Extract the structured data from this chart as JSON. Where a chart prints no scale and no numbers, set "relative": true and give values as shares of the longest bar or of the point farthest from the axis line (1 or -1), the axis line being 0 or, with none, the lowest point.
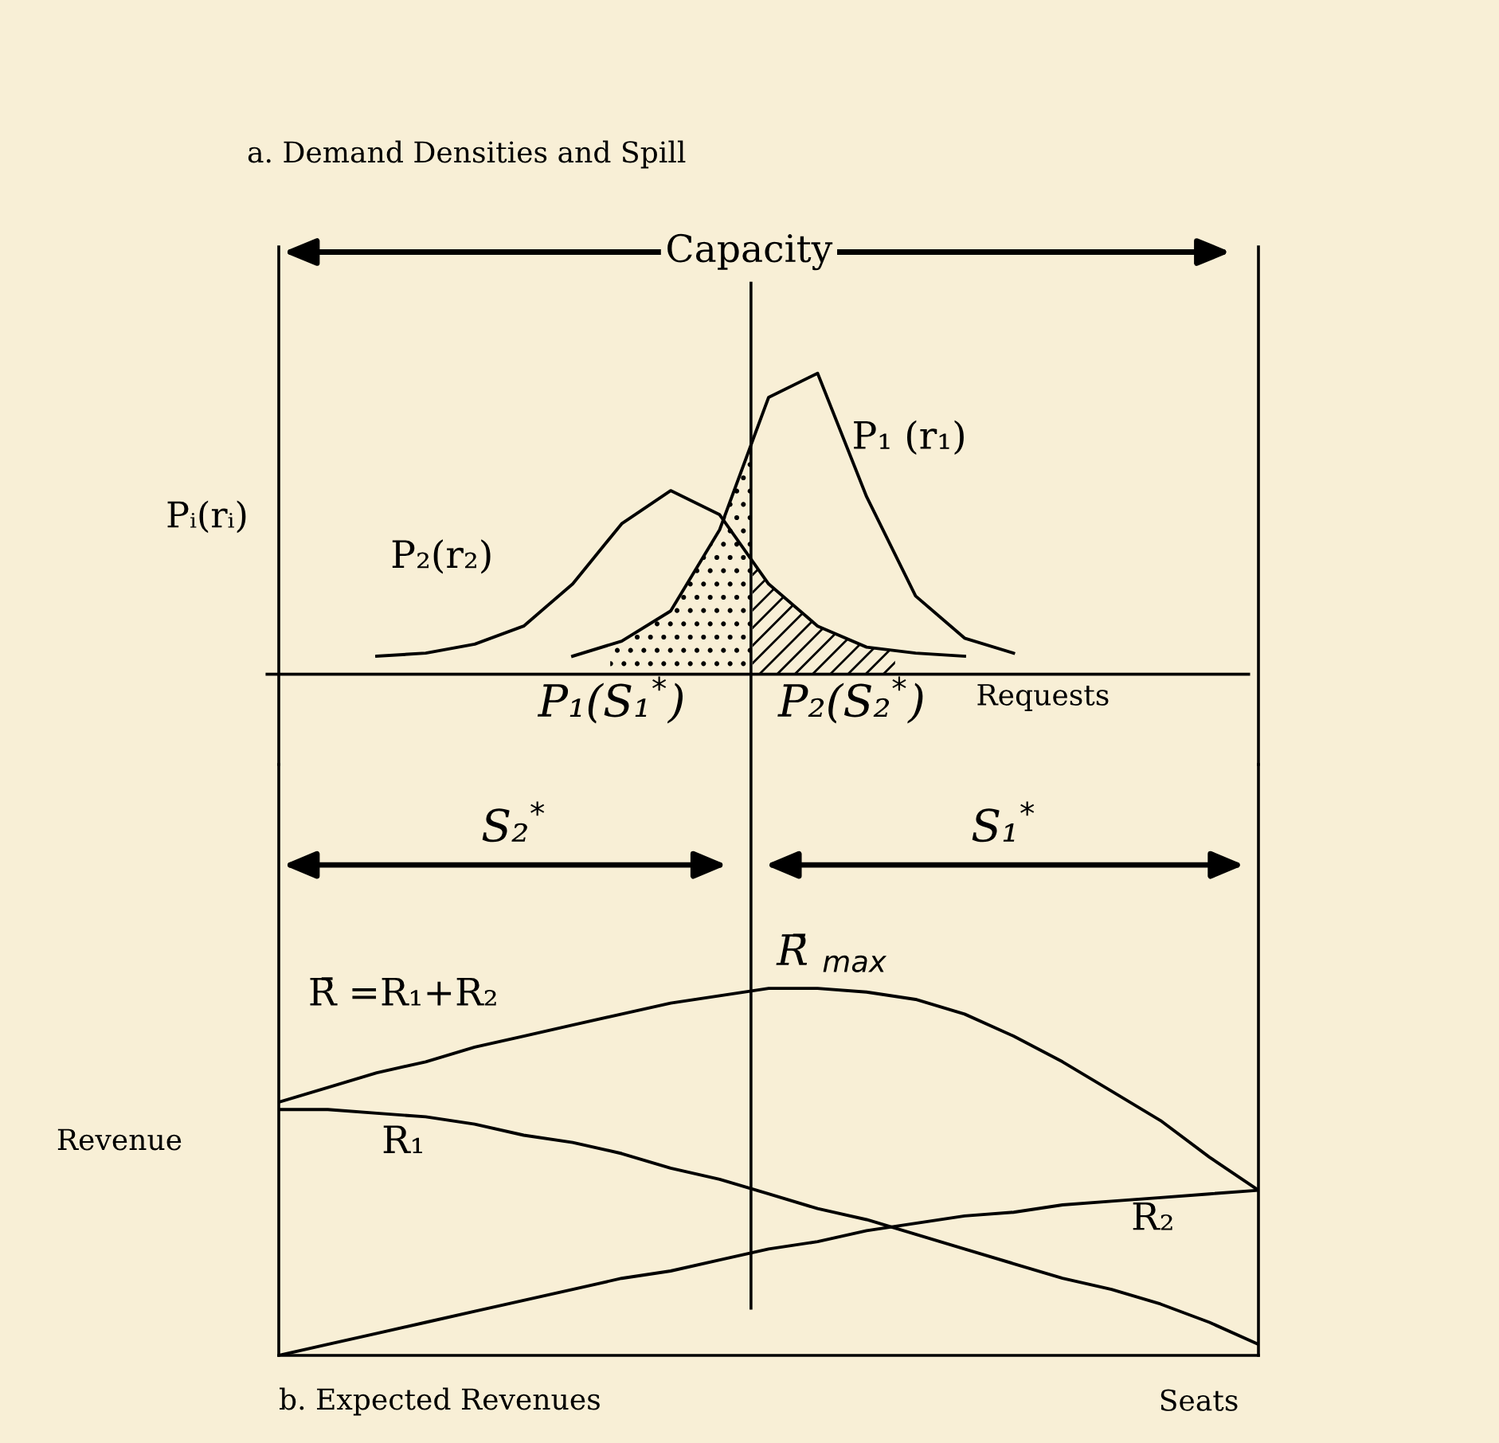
{
  "chart_data": [
    {
      "type": "line",
      "title": "a. Demand Densities and Spill",
      "ylabel": "Pᵢ(rᵢ)",
      "xlabel": "Requests",
      "relative": true,
      "categories": [
        null,
        null,
        null,
        null,
        null,
        null,
        null,
        null,
        null,
        null,
        null,
        null,
        null,
        null,
        null,
        null,
        null,
        null,
        null,
        null,
        null
      ],
      "series": [
        {
          "name": "P₁ (r₁)",
          "color": "#000000",
          "values": [
            null,
            null,
            null,
            null,
            null,
            null,
            0.06,
            0.11,
            0.21,
            0.48,
            0.92,
            1.0,
            0.59,
            0.26,
            0.12,
            0.07,
            null,
            null,
            null,
            null,
            null
          ]
        },
        {
          "name": "P₂(r₂)",
          "color": "#000000",
          "values": [
            null,
            null,
            0.06,
            0.07,
            0.1,
            0.16,
            0.3,
            0.5,
            0.61,
            0.53,
            0.3,
            0.16,
            0.09,
            0.07,
            0.06,
            null,
            null,
            null,
            null,
            null,
            null
          ]
        }
      ],
      "annotations": [
        "Capacity",
        "P₁(S₁$^{*}$)",
        "P₂(S₂$^{*}$)"
      ]
    },
    {
      "type": "line",
      "title": "b. Expected Revenues",
      "ylabel": "Revenue",
      "xlabel": "Seats",
      "relative": true,
      "categories": [
        null,
        null,
        null,
        null,
        null,
        null,
        null,
        null,
        null,
        null,
        null,
        null,
        null,
        null,
        null,
        null,
        null,
        null,
        null,
        null,
        null
      ],
      "series": [
        {
          "name": "R̄ =R₁+R₂",
          "color": "#000000",
          "values": [
            0.69,
            0.73,
            0.77,
            0.8,
            0.84,
            0.87,
            0.9,
            0.93,
            0.96,
            0.98,
            1.0,
            1.0,
            0.99,
            0.97,
            0.93,
            0.87,
            0.8,
            0.72,
            0.64,
            0.54,
            0.45
          ]
        },
        {
          "name": "R₁",
          "color": "#000000",
          "values": [
            0.67,
            0.67,
            0.66,
            0.65,
            0.63,
            0.6,
            0.58,
            0.55,
            0.51,
            0.48,
            0.44,
            0.4,
            0.37,
            0.33,
            0.29,
            0.25,
            0.21,
            0.18,
            0.14,
            0.09,
            0.03
          ]
        },
        {
          "name": "R₂",
          "color": "#000000",
          "values": [
            0,
            0.03,
            0.06,
            0.09,
            0.12,
            0.15,
            0.18,
            0.21,
            0.23,
            0.26,
            0.29,
            0.31,
            0.34,
            0.36,
            0.38,
            0.39,
            0.41,
            0.42,
            0.43,
            0.44,
            0.45
          ]
        }
      ],
      "annotations": [
        "S₂$^{*}$",
        "S₁$^{*}$",
        "R̄ $_{max}$"
      ]
    }
  ]
}
